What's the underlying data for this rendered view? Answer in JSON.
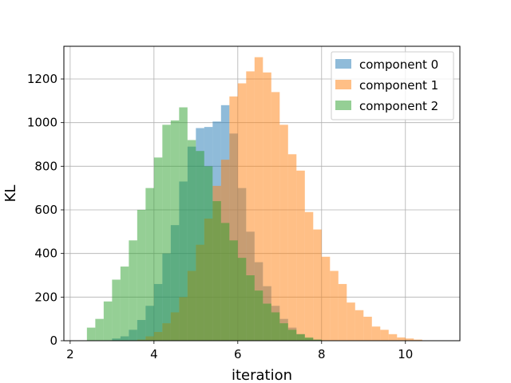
{
  "chart_data": {
    "type": "histogram",
    "xlabel": "iteration",
    "ylabel": "KL",
    "xlim": [
      1.85,
      11.3
    ],
    "ylim": [
      0,
      1350
    ],
    "xticks": [
      2,
      4,
      6,
      8,
      10
    ],
    "yticks": [
      0,
      200,
      400,
      600,
      800,
      1000,
      1200
    ],
    "grid": true,
    "legend_position": "top-right",
    "bin_width": 0.2,
    "bar_alpha": 0.5,
    "series": [
      {
        "name": "component 0",
        "color": "#1f77b4",
        "bin_start": 2.8,
        "counts": [
          2,
          10,
          20,
          50,
          95,
          160,
          260,
          400,
          530,
          730,
          890,
          975,
          980,
          1005,
          1080,
          950,
          700,
          500,
          360,
          250,
          160,
          100,
          60,
          30,
          12,
          5
        ]
      },
      {
        "name": "component 1",
        "color": "#ff7f0e",
        "bin_start": 3.6,
        "counts": [
          5,
          20,
          40,
          80,
          130,
          200,
          320,
          440,
          560,
          710,
          830,
          1120,
          1180,
          1235,
          1300,
          1230,
          1140,
          990,
          855,
          780,
          590,
          510,
          385,
          320,
          260,
          175,
          140,
          110,
          65,
          50,
          30,
          15,
          10,
          5
        ]
      },
      {
        "name": "component 2",
        "color": "#2ca02c",
        "bin_start": 2.4,
        "counts": [
          60,
          100,
          180,
          280,
          340,
          460,
          600,
          700,
          840,
          990,
          1010,
          1070,
          920,
          870,
          800,
          640,
          540,
          460,
          380,
          300,
          230,
          170,
          130,
          80,
          50,
          30,
          15,
          5
        ]
      }
    ]
  }
}
